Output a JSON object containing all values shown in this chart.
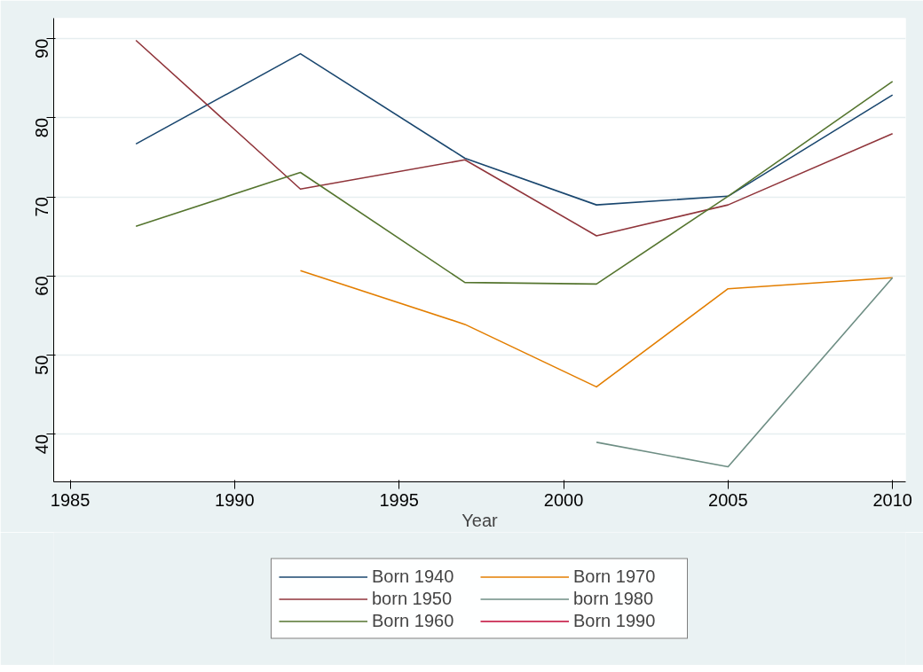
{
  "chart_data": {
    "type": "line",
    "xlabel": "Year",
    "x": [
      1987,
      1992,
      1997,
      2001,
      2005,
      2010
    ],
    "xlim": [
      1984.5,
      2010.4
    ],
    "xticks": [
      1985,
      1990,
      1995,
      2000,
      2005,
      2010
    ],
    "ylim": [
      34,
      92.6
    ],
    "yticks": [
      40,
      50,
      60,
      70,
      80,
      90
    ],
    "grid": "y",
    "legend": "bottom",
    "series": [
      {
        "name": "Born 1940",
        "color": "#1a476f",
        "values": [
          76.7,
          88.1,
          74.9,
          69.0,
          70.1,
          82.9
        ]
      },
      {
        "name": "born 1950",
        "color": "#90353b",
        "values": [
          89.8,
          71.0,
          74.7,
          65.1,
          69.0,
          78.0
        ]
      },
      {
        "name": "Born 1960",
        "color": "#55752f",
        "values": [
          66.3,
          73.1,
          59.2,
          59.0,
          70.1,
          84.6
        ]
      },
      {
        "name": "Born 1970",
        "color": "#e37e00",
        "values": [
          null,
          60.7,
          53.9,
          46.0,
          58.4,
          59.8
        ]
      },
      {
        "name": "born 1980",
        "color": "#6e8e84",
        "values": [
          null,
          null,
          null,
          39.0,
          35.9,
          59.8
        ]
      },
      {
        "name": "Born 1990",
        "color": "#c10534",
        "values": [
          null,
          null,
          null,
          null,
          null,
          null
        ]
      }
    ]
  }
}
